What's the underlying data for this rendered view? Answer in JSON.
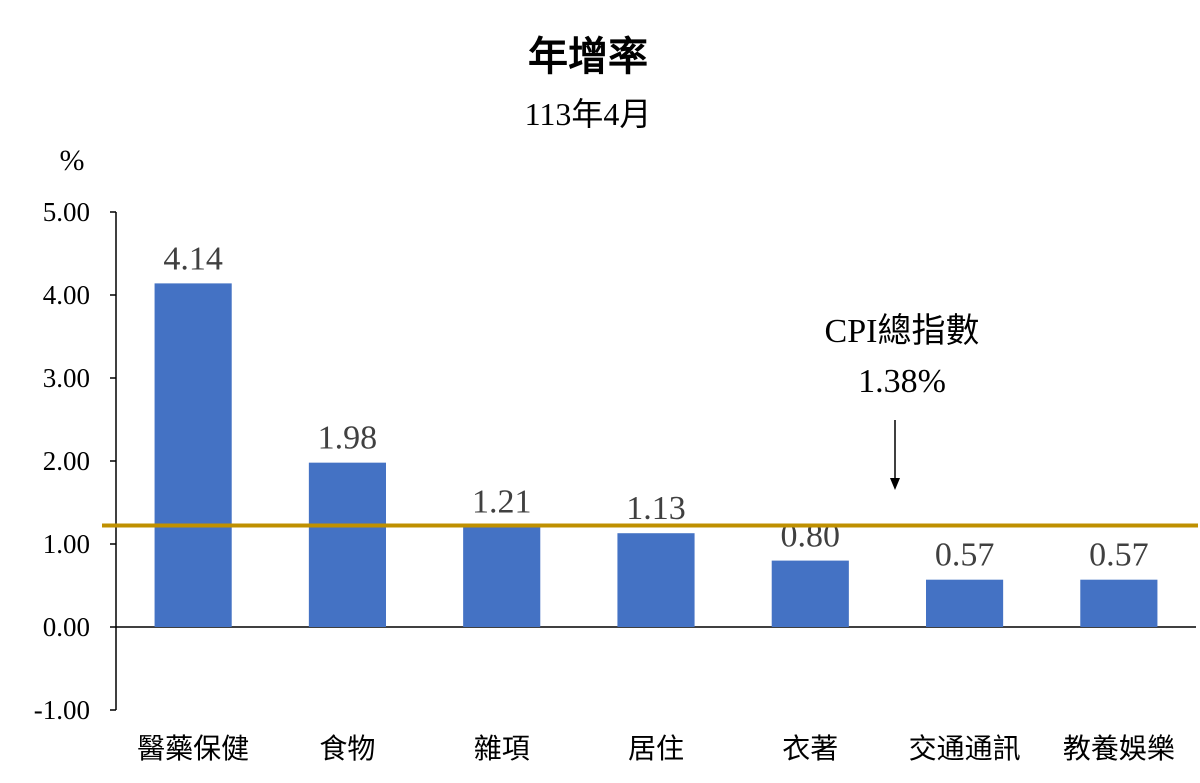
{
  "chart_data": {
    "type": "bar",
    "title": "年增率",
    "subtitle": "113年4月",
    "ylabel": "%",
    "ylim": [
      -1,
      5
    ],
    "yticks": [
      "5.00",
      "4.00",
      "3.00",
      "2.00",
      "1.00",
      "0.00",
      "-1.00"
    ],
    "categories": [
      "醫藥保健",
      "食物",
      "雜項",
      "居住",
      "衣著",
      "交通通訊",
      "教養娛樂"
    ],
    "values": [
      4.14,
      1.98,
      1.21,
      1.13,
      0.8,
      0.57,
      0.57
    ],
    "value_labels": [
      "4.14",
      "1.98",
      "1.21",
      "1.13",
      "0.80",
      "0.57",
      "0.57"
    ],
    "reference_line": {
      "value": 1.38,
      "label": "CPI總指數",
      "value_label": "1.38%",
      "color": "#BF9000"
    },
    "bar_color": "#4472C4",
    "grid": false,
    "legend": "none"
  }
}
